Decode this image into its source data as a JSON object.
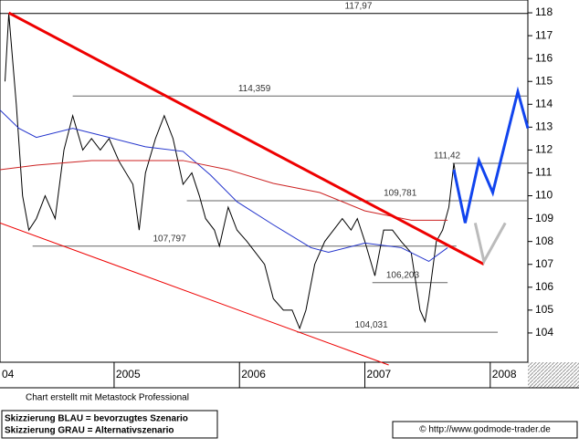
{
  "chart_data": {
    "type": "line",
    "xlim": [
      2004.09,
      2008.3
    ],
    "xticks": [
      {
        "value": 2004,
        "label": "04"
      },
      2005,
      2006,
      2007,
      2008
    ],
    "ylim": [
      102.72,
      118.56
    ],
    "yticks": [
      104,
      105,
      106,
      107,
      108,
      109,
      110,
      111,
      112,
      113,
      114,
      115,
      116,
      117,
      118
    ],
    "series": [
      {
        "color": "#000000",
        "x": [
          2004.13,
          2004.16,
          2004.22,
          2004.27,
          2004.32,
          2004.38,
          2004.45,
          2004.53,
          2004.6,
          2004.67,
          2004.75,
          2004.82,
          2004.89,
          2004.96,
          2005.04,
          2005.15,
          2005.2,
          2005.25,
          2005.33,
          2005.4,
          2005.47,
          2005.55,
          2005.62,
          2005.68,
          2005.73,
          2005.8,
          2005.84,
          2005.91,
          2005.98,
          2006.06,
          2006.13,
          2006.2,
          2006.27,
          2006.35,
          2006.42,
          2006.48,
          2006.53,
          2006.6,
          2006.68,
          2006.75,
          2006.82,
          2006.89,
          2006.94,
          2007.0,
          2007.08,
          2007.15,
          2007.22,
          2007.29,
          2007.37,
          2007.44,
          2007.48,
          2007.51,
          2007.57,
          2007.62,
          2007.67,
          2007.71,
          2007.75
        ],
        "values": [
          115,
          117.97,
          114,
          110,
          108.5,
          109,
          110,
          109,
          112,
          113.5,
          112,
          112.5,
          112,
          112.5,
          111.5,
          110.5,
          108.5,
          111,
          112.5,
          113.5,
          112.5,
          110.5,
          111,
          110,
          109,
          108.5,
          107.8,
          109.5,
          108.5,
          108,
          107.5,
          107,
          105.5,
          105,
          105,
          104.2,
          105,
          107,
          108,
          108.5,
          109,
          108.5,
          109,
          108,
          106.5,
          108.5,
          108.5,
          108,
          107.5,
          105,
          104.5,
          105.5,
          108,
          108.5,
          109.5,
          111.42,
          110
        ]
      },
      {
        "color": "#2233cc",
        "x": [
          2004.09,
          2004.24,
          2004.38,
          2004.67,
          2004.96,
          2005.25,
          2005.55,
          2005.77,
          2005.98,
          2006.27,
          2006.57,
          2006.71,
          2007.0,
          2007.29,
          2007.51,
          2007.66
        ],
        "values": [
          113.75,
          112.95,
          112.55,
          112.95,
          112.55,
          112.14,
          111.94,
          110.9,
          109.74,
          108.73,
          107.73,
          107.53,
          107.93,
          107.73,
          107.13,
          107.73
        ]
      },
      {
        "color": "#cc2222",
        "x": [
          2004.09,
          2004.38,
          2004.82,
          2005.55,
          2005.91,
          2006.27,
          2006.64,
          2007.0,
          2007.37,
          2007.66
        ],
        "values": [
          111.14,
          111.34,
          111.54,
          111.54,
          111.14,
          110.54,
          110.14,
          109.34,
          108.93,
          108.93
        ]
      },
      {
        "color": "#ee0000",
        "width": 3,
        "x": [
          2004.16,
          2007.95
        ],
        "values": [
          118,
          107
        ]
      },
      {
        "color": "#ee0000",
        "width": 1,
        "x": [
          2004.09,
          2007.19
        ],
        "values": [
          108.81,
          102.6
        ]
      },
      {
        "color": "#1144ee",
        "width": 3,
        "x": [
          2007.71,
          2007.8,
          2007.91,
          2008.02,
          2008.22,
          2008.3
        ],
        "values": [
          111.14,
          108.81,
          111.54,
          110.14,
          114.55,
          112.95
        ]
      },
      {
        "color": "#bbbbbb",
        "width": 3,
        "x": [
          2007.88,
          2007.95,
          2008.12
        ],
        "values": [
          108.81,
          107.13,
          108.81
        ]
      }
    ],
    "levels": [
      {
        "value": 117.97,
        "label": "117,97",
        "start": 2004.09,
        "label_x": 2006.84
      },
      {
        "value": 114.359,
        "label": "114,359",
        "start": 2004.67,
        "label_x": 2005.99
      },
      {
        "value": 111.42,
        "label": "111,42",
        "start": 2007.7,
        "label_x": 2007.55
      },
      {
        "value": 109.781,
        "label": "109,781",
        "start": 2005.58,
        "label_x": 2007.15
      },
      {
        "value": 107.797,
        "label": "107,797",
        "start": 2004.35,
        "label_x": 2005.31
      },
      {
        "value": 106.203,
        "label": "106,203",
        "start": 2007.06,
        "label_x": 2007.17
      },
      {
        "value": 104.031,
        "label": "104,031",
        "start": 2006.46,
        "label_x": 2006.92
      }
    ],
    "level_ends": [
      2008.3,
      2008.3,
      2008.3,
      2008.3,
      2007.73,
      2007.66,
      2008.06
    ],
    "footer": {
      "credit": "Chart erstellt mit Metastock Professional",
      "legend": [
        "Skizzierung BLAU = bevorzugtes Szenario",
        "Skizzierung GRAU = Alternativszenario"
      ],
      "source": "© http://www.godmode-trader.de"
    }
  }
}
